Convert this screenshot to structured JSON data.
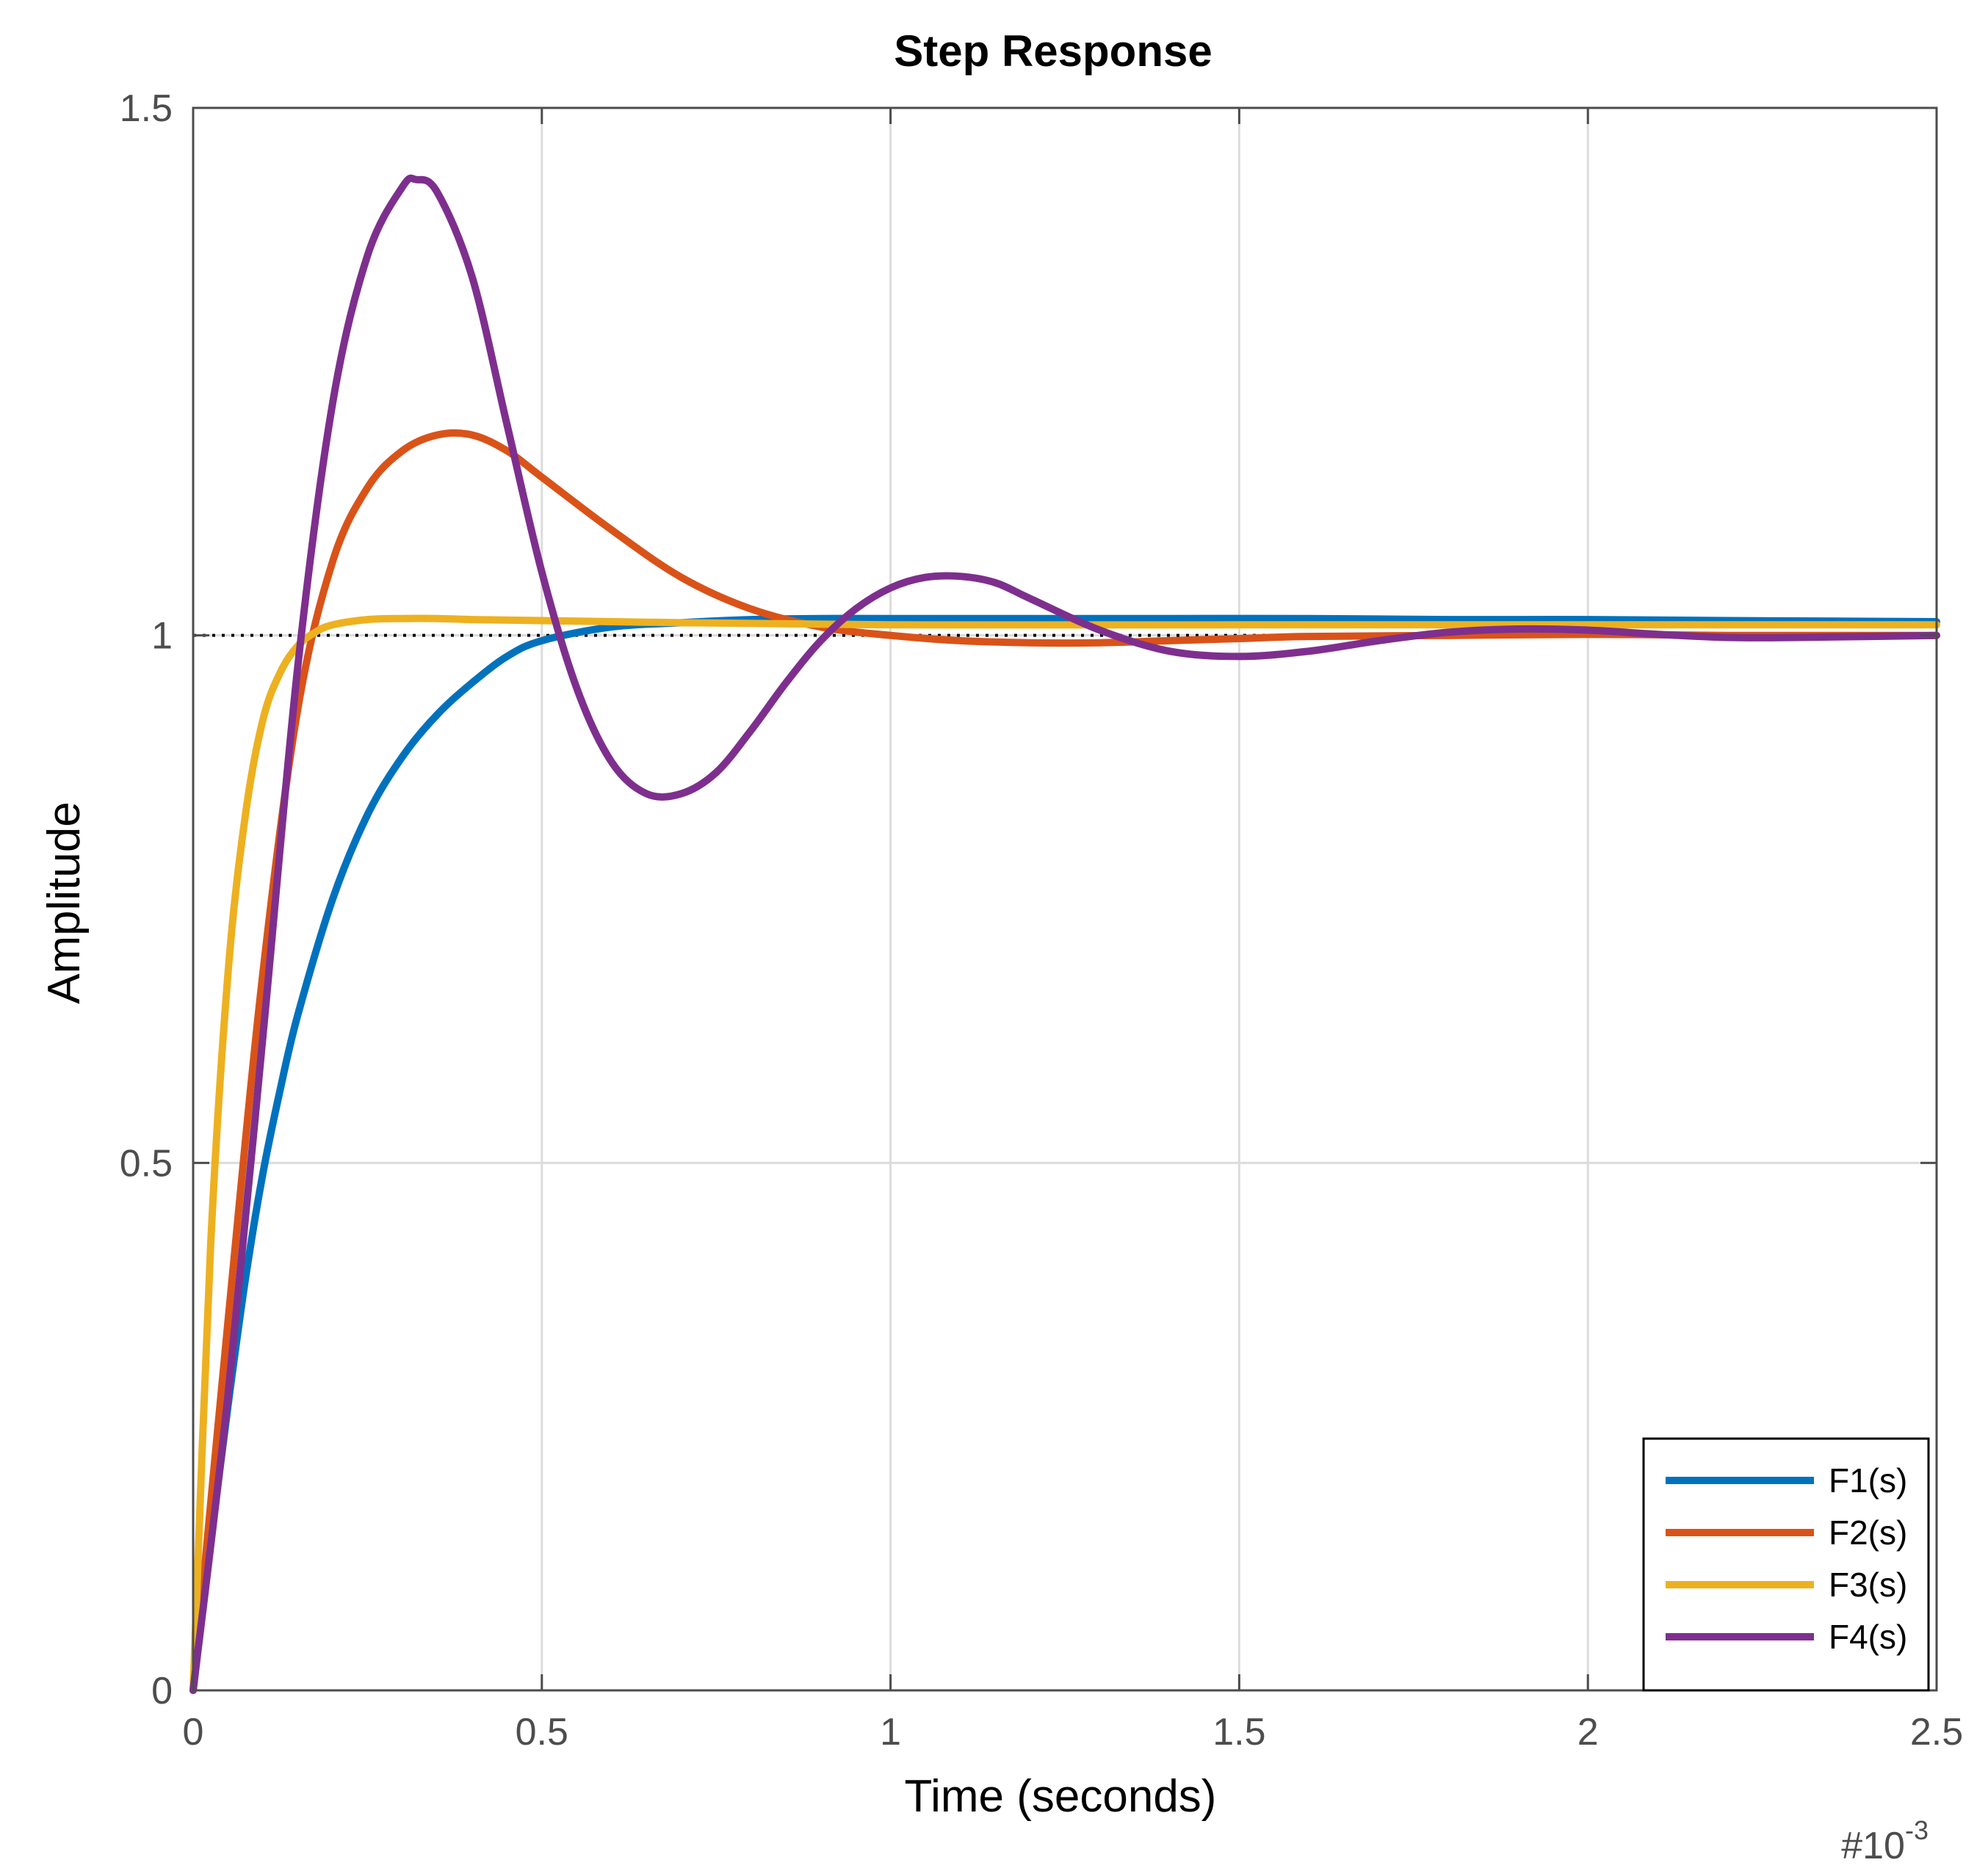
{
  "chart_data": {
    "type": "line",
    "title": "Step Response",
    "xlabel": "Time (seconds)",
    "ylabel": "Amplitude",
    "x_exponent_base": "#10",
    "x_exponent_power": "-3",
    "xlim": [
      0,
      2.5
    ],
    "ylim": [
      0,
      1.5
    ],
    "xticks": [
      0,
      0.5,
      1,
      1.5,
      2,
      2.5
    ],
    "xtick_labels": [
      "0",
      "0.5",
      "1",
      "1.5",
      "2",
      "2.5"
    ],
    "yticks": [
      0,
      0.5,
      1,
      1.5
    ],
    "ytick_labels": [
      "0",
      "0.5",
      "1",
      "1.5"
    ],
    "grid": true,
    "legend_position": "bottom-right",
    "reference_line": {
      "y": 1,
      "style": "dotted",
      "color": "#000000"
    },
    "colors": {
      "axis": "#4d4d4d",
      "grid": "#dcdcdc",
      "F1": "#0072bd",
      "F2": "#d95319",
      "F3": "#edb120",
      "F4": "#7e2f8e"
    },
    "series": [
      {
        "name": "F1(s)",
        "color": "#0072bd",
        "x": [
          0,
          0.025,
          0.05,
          0.075,
          0.1,
          0.125,
          0.15,
          0.2,
          0.25,
          0.3,
          0.35,
          0.4,
          0.45,
          0.5,
          0.6,
          0.7,
          0.8,
          0.9,
          1.0,
          1.2,
          1.4,
          1.6,
          1.8,
          2.0,
          2.2,
          2.5
        ],
        "y": [
          0,
          0.14,
          0.27,
          0.39,
          0.49,
          0.57,
          0.64,
          0.75,
          0.83,
          0.885,
          0.925,
          0.955,
          0.98,
          0.995,
          1.008,
          1.012,
          1.015,
          1.016,
          1.016,
          1.016,
          1.016,
          1.016,
          1.015,
          1.015,
          1.014,
          1.013
        ]
      },
      {
        "name": "F2(s)",
        "color": "#d95319",
        "x": [
          0,
          0.05,
          0.1,
          0.15,
          0.2,
          0.25,
          0.3,
          0.35,
          0.4,
          0.45,
          0.5,
          0.6,
          0.7,
          0.8,
          0.9,
          1.0,
          1.1,
          1.2,
          1.3,
          1.4,
          1.5,
          1.6,
          1.8,
          2.0,
          2.2,
          2.5
        ],
        "y": [
          0,
          0.35,
          0.68,
          0.93,
          1.07,
          1.14,
          1.175,
          1.19,
          1.19,
          1.175,
          1.15,
          1.1,
          1.055,
          1.025,
          1.008,
          1.0,
          0.995,
          0.993,
          0.993,
          0.995,
          0.997,
          0.999,
          1.0,
          1.001,
          1.0,
          1.0
        ]
      },
      {
        "name": "F3(s)",
        "color": "#edb120",
        "x": [
          0,
          0.025,
          0.05,
          0.075,
          0.1,
          0.125,
          0.15,
          0.175,
          0.2,
          0.25,
          0.3,
          0.35,
          0.4,
          0.5,
          0.7,
          1.0,
          1.5,
          2.0,
          2.5
        ],
        "y": [
          0,
          0.42,
          0.68,
          0.83,
          0.92,
          0.965,
          0.99,
          1.003,
          1.01,
          1.015,
          1.016,
          1.016,
          1.015,
          1.014,
          1.012,
          1.01,
          1.01,
          1.01,
          1.01
        ]
      },
      {
        "name": "F4(s)",
        "color": "#7e2f8e",
        "x": [
          0,
          0.05,
          0.1,
          0.15,
          0.2,
          0.25,
          0.3,
          0.32,
          0.35,
          0.4,
          0.45,
          0.5,
          0.55,
          0.6,
          0.65,
          0.7,
          0.75,
          0.8,
          0.85,
          0.9,
          0.95,
          1.0,
          1.05,
          1.1,
          1.15,
          1.2,
          1.3,
          1.4,
          1.5,
          1.6,
          1.7,
          1.8,
          1.9,
          2.0,
          2.1,
          2.2,
          2.3,
          2.5
        ],
        "y": [
          0,
          0.28,
          0.62,
          0.97,
          1.22,
          1.36,
          1.425,
          1.432,
          1.42,
          1.34,
          1.2,
          1.06,
          0.95,
          0.88,
          0.85,
          0.85,
          0.87,
          0.91,
          0.955,
          0.995,
          1.025,
          1.045,
          1.055,
          1.056,
          1.05,
          1.035,
          1.005,
          0.985,
          0.98,
          0.985,
          0.995,
          1.003,
          1.006,
          1.005,
          1.001,
          0.998,
          0.998,
          1.0
        ]
      }
    ]
  }
}
